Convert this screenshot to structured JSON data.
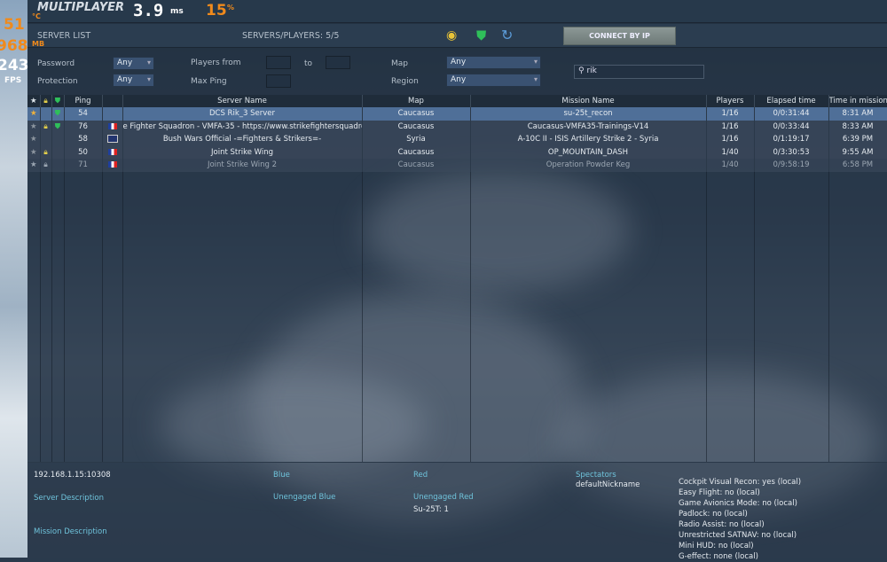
{
  "title": "MULTIPLAYER",
  "server_list_label": "SERVER LIST",
  "servers_players": "SERVERS/PLAYERS: 5/5",
  "connect_by_ip": "CONNECT BY IP",
  "overlay": {
    "temp": "51",
    "temp_unit": "°C",
    "load": "15",
    "load_unit": "%",
    "mem": "968",
    "mem_unit": "MB",
    "fps": "243",
    "fps_label": "FPS",
    "frametime": "3.9",
    "frametime_unit": "ms"
  },
  "filters": {
    "password_label": "Password",
    "password_value": "Any",
    "protection_label": "Protection",
    "protection_value": "Any",
    "players_from_label": "Players from",
    "to_label": "to",
    "max_ping_label": "Max Ping",
    "map_label": "Map",
    "map_value": "Any",
    "region_label": "Region",
    "region_value": "Any",
    "search_value": "rik"
  },
  "colors": {
    "accent": "#6fc4dc",
    "selected_row": "#4f6f98",
    "overlay": "#f08a1c"
  },
  "columns": [
    "Ping",
    "Server Name",
    "Map",
    "Mission Name",
    "Players",
    "Elapsed time",
    "Time in mission"
  ],
  "rows": [
    {
      "fav": true,
      "lock": false,
      "shield": true,
      "ping": "54",
      "flag": "",
      "server": "DCS Rik_3 Server",
      "map": "Caucasus",
      "mission": "su-25t_recon",
      "players": "1/16",
      "elapsed": "0/0:31:44",
      "time": "8:31 AM"
    },
    {
      "fav": false,
      "lock": true,
      "shield": true,
      "ping": "76",
      "flag": "fr",
      "server": "e Fighter Squadron - VMFA-35 - https://www.strikefightersquadron",
      "map": "Caucasus",
      "mission": "Caucasus-VMFA35-Trainings-V14",
      "players": "1/16",
      "elapsed": "0/0:33:44",
      "time": "8:33 AM"
    },
    {
      "fav": false,
      "lock": false,
      "shield": false,
      "ping": "58",
      "flag": "uk",
      "server": "Bush Wars Official -=Fighters & Strikers=-",
      "map": "Syria",
      "mission": "A-10C II - ISIS Artillery Strike 2 - Syria",
      "players": "1/16",
      "elapsed": "0/1:19:17",
      "time": "6:39 PM"
    },
    {
      "fav": false,
      "lock": true,
      "shield": false,
      "ping": "50",
      "flag": "fr",
      "server": "Joint Strike Wing",
      "map": "Caucasus",
      "mission": "OP_MOUNTAIN_DASH",
      "players": "1/40",
      "elapsed": "0/3:30:53",
      "time": "9:55 AM"
    },
    {
      "fav": false,
      "lock": true,
      "shield": false,
      "ping": "71",
      "flag": "fr",
      "server": "Joint Strike Wing 2",
      "map": "Caucasus",
      "mission": "Operation Powder Keg",
      "players": "1/40",
      "elapsed": "0/9:58:19",
      "time": "6:58 PM"
    }
  ],
  "details": {
    "address": "192.168.1.15:10308",
    "server_description": "Server Description",
    "mission_description": "Mission Description",
    "blue": "Blue",
    "unengaged_blue": "Unengaged Blue",
    "red": "Red",
    "unengaged_red": "Unengaged Red",
    "unengaged_red_value": "Su-25T: 1",
    "spectators": "Spectators",
    "spectator_name": "defaultNickname",
    "options": [
      "Cockpit Visual Recon: yes (local)",
      "Easy Flight: no (local)",
      "Game Avionics Mode: no (local)",
      "Padlock: no (local)",
      "Radio Assist: no (local)",
      "Unrestricted SATNAV: no (local)",
      "Mini HUD: no (local)",
      "G-effect: none (local)"
    ]
  }
}
